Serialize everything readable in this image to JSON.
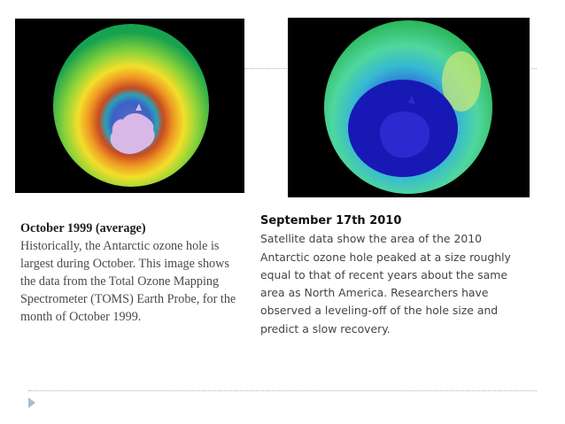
{
  "left_panel": {
    "title": "October 1999 (average)",
    "body": "Historically, the Antarctic ozone hole is largest during October. This image shows the data from the Total Ozone Mapping Spectrometer (TOMS) Earth Probe, for the month of October 1999."
  },
  "right_panel": {
    "title": "September 17th 2010",
    "body": "Satellite data show the area of the 2010 Antarctic ozone hole peaked at a size roughly equal to that of recent years about the same area as North America. Researchers have observed a leveling-off of the hole size and predict a slow recovery."
  }
}
